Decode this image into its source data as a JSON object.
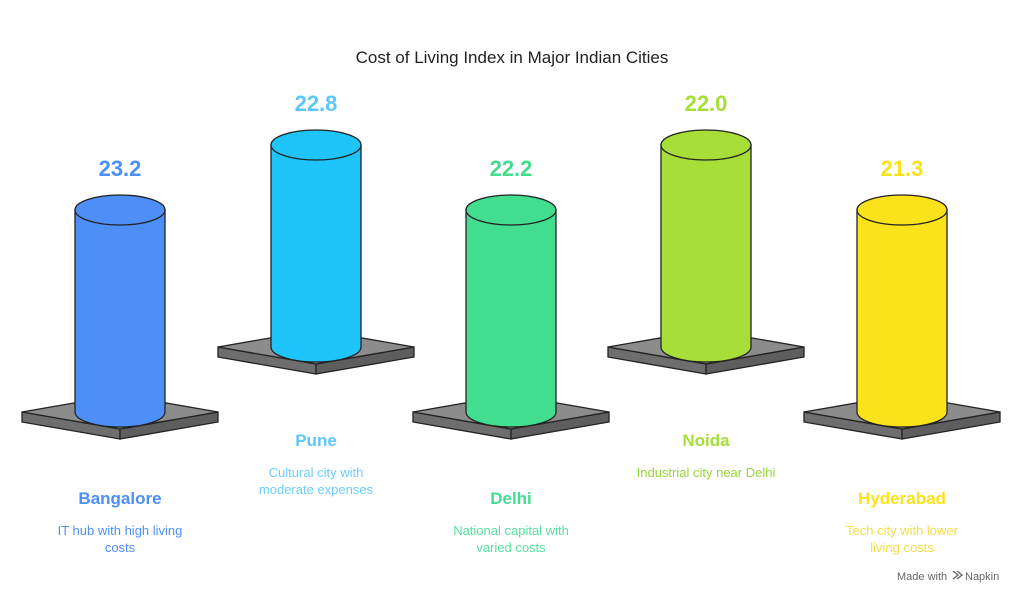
{
  "chart_data": {
    "type": "bar",
    "title": "Cost of Living Index in Major Indian Cities",
    "categories": [
      "Bangalore",
      "Pune",
      "Delhi",
      "Noida",
      "Hyderabad"
    ],
    "values": [
      23.2,
      22.8,
      22.2,
      22.0,
      21.3
    ],
    "value_labels": [
      "23.2",
      "22.8",
      "22.2",
      "22.0",
      "21.3"
    ],
    "descriptions": [
      [
        "IT hub with high living",
        "costs"
      ],
      [
        "Cultural city with",
        "moderate expenses"
      ],
      [
        "National capital with",
        "varied costs"
      ],
      [
        "Industrial city near Delhi"
      ],
      [
        "Tech city with lower",
        "living costs"
      ]
    ],
    "colors": [
      "#4d8ff7",
      "#1fc4fb",
      "#43dd90",
      "#a7de37",
      "#fbe31b"
    ],
    "label_colors": [
      "#4d8ff7",
      "#5cc8fa",
      "#43dd90",
      "#a7de37",
      "#fbe31b"
    ],
    "desc_colors": [
      "#4d8ff7",
      "#6ccdfa",
      "#5ae0a0",
      "#99d43a",
      "#f5de4a"
    ]
  },
  "footer": {
    "made_with": "Made with",
    "brand": "Napkin"
  }
}
